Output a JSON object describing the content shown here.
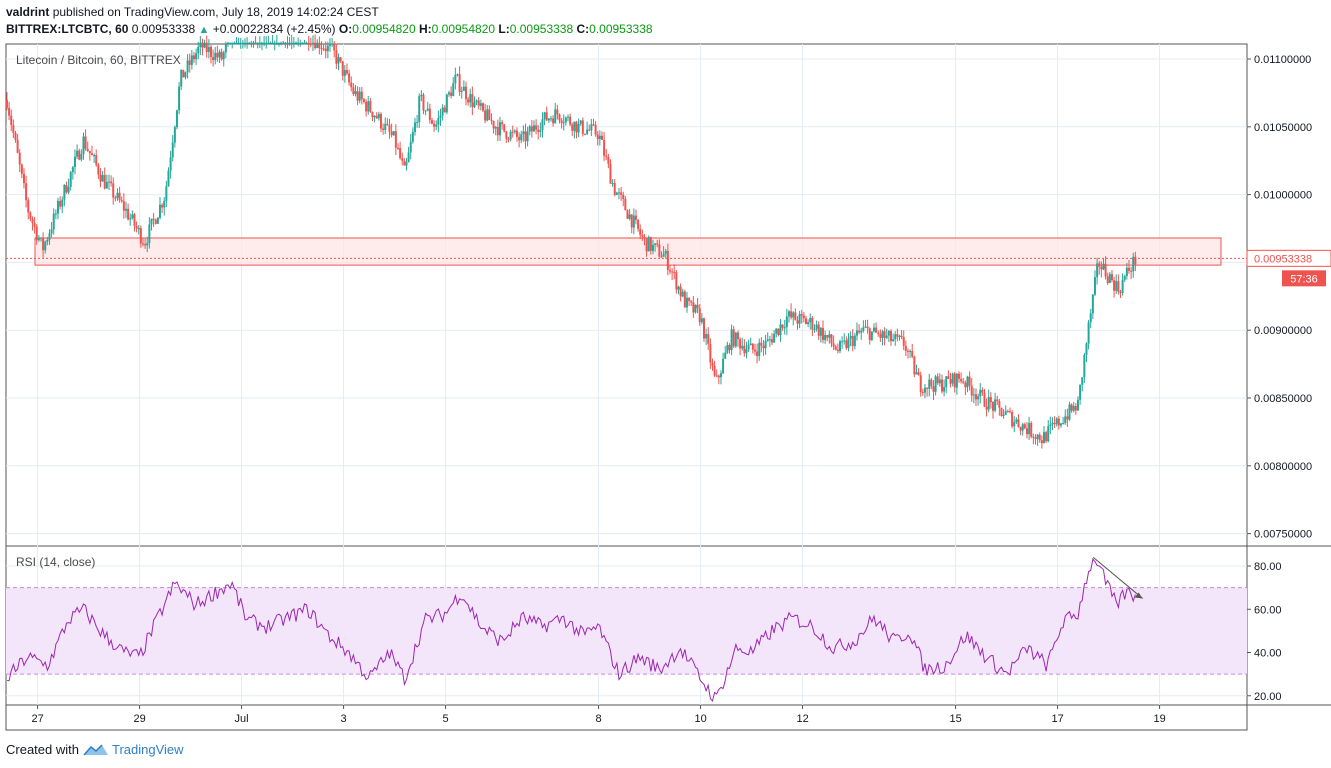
{
  "header": {
    "author": "valdrint",
    "published_text": "published on TradingView.com, July 18, 2019 14:02:24 CEST",
    "symbol": "BITTREX:LTCBTC, 60",
    "last": "0.00953338",
    "change": "+0.00022834 (+2.45%)",
    "o_label": "O:",
    "o_value": "0.00954820",
    "h_label": "H:",
    "h_value": "0.00954820",
    "l_label": "L:",
    "l_value": "0.00953338",
    "c_label": "C:",
    "c_value": "0.00953338"
  },
  "footer": {
    "created_with": "Created with",
    "brand": "TradingView"
  },
  "colors": {
    "up": "#26a69a",
    "down": "#ef5350",
    "rsi_line": "#9c27b0",
    "rsi_band": "#f3e5fa",
    "zone_fill": "#fde4e4",
    "zone_stroke": "#ef5350",
    "price_tag": "#ef5350"
  },
  "chart_data": [
    {
      "type": "candlestick",
      "title": "Litecoin / Bitcoin, 60, BITTREX",
      "x_ticks": [
        "27",
        "29",
        "Jul",
        "3",
        "5",
        "8",
        "10",
        "12",
        "15",
        "17",
        "19"
      ],
      "y_ticks": [
        "0.01100000",
        "0.01050000",
        "0.01000000",
        "0.00950000",
        "0.00900000",
        "0.00850000",
        "0.00800000",
        "0.00750000"
      ],
      "ylim": [
        0.0073,
        0.0112
      ],
      "grid": true,
      "last_price_label": "0.00953338",
      "countdown_label": "57:36",
      "resistance_zone": {
        "from": 0.00948,
        "to": 0.00968
      },
      "marker_arrows_at_days": [
        17.7,
        18.5
      ],
      "close_path": [
        {
          "d": 26.4,
          "v": 0.0107
        },
        {
          "d": 26.8,
          "v": 0.0099
        },
        {
          "d": 27.1,
          "v": 0.0096
        },
        {
          "d": 27.5,
          "v": 0.01
        },
        {
          "d": 27.9,
          "v": 0.0104
        },
        {
          "d": 28.3,
          "v": 0.0101
        },
        {
          "d": 28.7,
          "v": 0.0099
        },
        {
          "d": 29.1,
          "v": 0.00965
        },
        {
          "d": 29.5,
          "v": 0.01
        },
        {
          "d": 29.8,
          "v": 0.01085
        },
        {
          "d": 30.2,
          "v": 0.0111
        },
        {
          "d": 30.6,
          "v": 0.011
        },
        {
          "d": 31.0,
          "v": 0.0113
        },
        {
          "d": 31.6,
          "v": 0.01125
        },
        {
          "d": 32.2,
          "v": 0.0112
        },
        {
          "d": 32.8,
          "v": 0.01105
        },
        {
          "d": 33.2,
          "v": 0.01075
        },
        {
          "d": 33.6,
          "v": 0.0106
        },
        {
          "d": 34.0,
          "v": 0.0104
        },
        {
          "d": 34.2,
          "v": 0.01015
        },
        {
          "d": 34.5,
          "v": 0.0107
        },
        {
          "d": 34.8,
          "v": 0.0105
        },
        {
          "d": 35.2,
          "v": 0.01085
        },
        {
          "d": 35.6,
          "v": 0.01065
        },
        {
          "d": 36.0,
          "v": 0.0105
        },
        {
          "d": 36.5,
          "v": 0.0104
        },
        {
          "d": 36.9,
          "v": 0.01055
        },
        {
          "d": 37.2,
          "v": 0.0106
        },
        {
          "d": 37.6,
          "v": 0.0105
        },
        {
          "d": 38.0,
          "v": 0.01045
        },
        {
          "d": 38.3,
          "v": 0.01005
        },
        {
          "d": 38.6,
          "v": 0.00985
        },
        {
          "d": 38.9,
          "v": 0.00965
        },
        {
          "d": 39.3,
          "v": 0.00955
        },
        {
          "d": 39.7,
          "v": 0.0092
        },
        {
          "d": 40.0,
          "v": 0.0091
        },
        {
          "d": 40.3,
          "v": 0.0086
        },
        {
          "d": 40.6,
          "v": 0.00895
        },
        {
          "d": 41.0,
          "v": 0.00885
        },
        {
          "d": 41.3,
          "v": 0.0089
        },
        {
          "d": 41.7,
          "v": 0.0091
        },
        {
          "d": 42.2,
          "v": 0.00905
        },
        {
          "d": 42.7,
          "v": 0.00885
        },
        {
          "d": 43.2,
          "v": 0.009
        },
        {
          "d": 43.6,
          "v": 0.00895
        },
        {
          "d": 44.0,
          "v": 0.0089
        },
        {
          "d": 44.3,
          "v": 0.0086
        },
        {
          "d": 44.7,
          "v": 0.0086
        },
        {
          "d": 45.1,
          "v": 0.00865
        },
        {
          "d": 45.5,
          "v": 0.0085
        },
        {
          "d": 45.9,
          "v": 0.0084
        },
        {
          "d": 46.3,
          "v": 0.0083
        },
        {
          "d": 46.7,
          "v": 0.0082
        },
        {
          "d": 47.1,
          "v": 0.00835
        },
        {
          "d": 47.4,
          "v": 0.00845
        },
        {
          "d": 47.6,
          "v": 0.009
        },
        {
          "d": 47.8,
          "v": 0.0095
        },
        {
          "d": 48.0,
          "v": 0.0094
        },
        {
          "d": 48.2,
          "v": 0.0093
        },
        {
          "d": 48.4,
          "v": 0.00945
        },
        {
          "d": 48.55,
          "v": 0.00953
        }
      ]
    },
    {
      "type": "line",
      "title": "RSI (14, close)",
      "y_ticks": [
        "80.00",
        "60.00",
        "40.00",
        "20.00"
      ],
      "ylim": [
        15,
        87
      ],
      "band": [
        30,
        70
      ],
      "grid": true,
      "divergence_arrow": {
        "from": {
          "d": 47.7,
          "v": 84
        },
        "to": {
          "d": 48.55,
          "v": 65
        }
      },
      "series": [
        {
          "values_path": [
            {
              "d": 26.4,
              "v": 28
            },
            {
              "d": 26.8,
              "v": 38
            },
            {
              "d": 27.2,
              "v": 34
            },
            {
              "d": 27.6,
              "v": 55
            },
            {
              "d": 27.9,
              "v": 60
            },
            {
              "d": 28.3,
              "v": 48
            },
            {
              "d": 28.7,
              "v": 40
            },
            {
              "d": 29.0,
              "v": 38
            },
            {
              "d": 29.4,
              "v": 58
            },
            {
              "d": 29.7,
              "v": 72
            },
            {
              "d": 30.1,
              "v": 62
            },
            {
              "d": 30.5,
              "v": 68
            },
            {
              "d": 30.8,
              "v": 72
            },
            {
              "d": 31.1,
              "v": 55
            },
            {
              "d": 31.5,
              "v": 52
            },
            {
              "d": 31.9,
              "v": 56
            },
            {
              "d": 32.3,
              "v": 60
            },
            {
              "d": 32.7,
              "v": 48
            },
            {
              "d": 33.1,
              "v": 40
            },
            {
              "d": 33.5,
              "v": 28
            },
            {
              "d": 33.9,
              "v": 40
            },
            {
              "d": 34.2,
              "v": 28
            },
            {
              "d": 34.6,
              "v": 55
            },
            {
              "d": 35.0,
              "v": 58
            },
            {
              "d": 35.3,
              "v": 68
            },
            {
              "d": 35.7,
              "v": 52
            },
            {
              "d": 36.1,
              "v": 45
            },
            {
              "d": 36.5,
              "v": 56
            },
            {
              "d": 36.9,
              "v": 52
            },
            {
              "d": 37.3,
              "v": 56
            },
            {
              "d": 37.7,
              "v": 48
            },
            {
              "d": 38.0,
              "v": 52
            },
            {
              "d": 38.4,
              "v": 30
            },
            {
              "d": 38.8,
              "v": 38
            },
            {
              "d": 39.2,
              "v": 32
            },
            {
              "d": 39.6,
              "v": 42
            },
            {
              "d": 40.0,
              "v": 28
            },
            {
              "d": 40.3,
              "v": 18
            },
            {
              "d": 40.7,
              "v": 42
            },
            {
              "d": 41.0,
              "v": 40
            },
            {
              "d": 41.4,
              "v": 50
            },
            {
              "d": 41.8,
              "v": 56
            },
            {
              "d": 42.2,
              "v": 52
            },
            {
              "d": 42.6,
              "v": 42
            },
            {
              "d": 43.0,
              "v": 45
            },
            {
              "d": 43.4,
              "v": 56
            },
            {
              "d": 43.8,
              "v": 45
            },
            {
              "d": 44.1,
              "v": 50
            },
            {
              "d": 44.4,
              "v": 32
            },
            {
              "d": 44.8,
              "v": 34
            },
            {
              "d": 45.2,
              "v": 48
            },
            {
              "d": 45.6,
              "v": 38
            },
            {
              "d": 46.0,
              "v": 30
            },
            {
              "d": 46.4,
              "v": 42
            },
            {
              "d": 46.8,
              "v": 34
            },
            {
              "d": 47.1,
              "v": 54
            },
            {
              "d": 47.4,
              "v": 58
            },
            {
              "d": 47.6,
              "v": 78
            },
            {
              "d": 47.75,
              "v": 84
            },
            {
              "d": 47.95,
              "v": 72
            },
            {
              "d": 48.15,
              "v": 62
            },
            {
              "d": 48.35,
              "v": 68
            },
            {
              "d": 48.55,
              "v": 66
            }
          ]
        }
      ]
    }
  ]
}
